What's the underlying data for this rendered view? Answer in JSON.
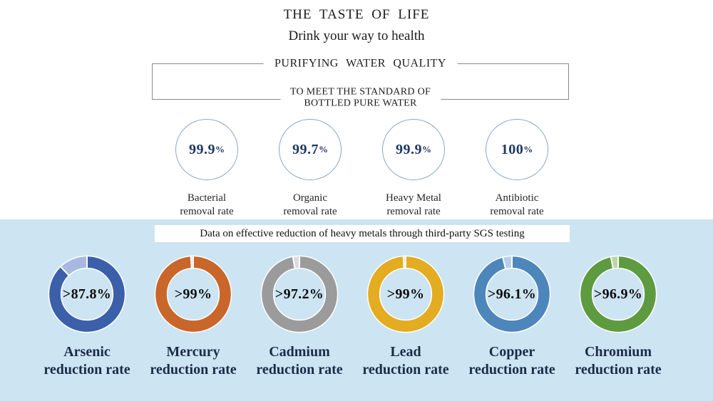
{
  "header": {
    "title": "THE TASTE OF LIFE",
    "subtitle": "Drink your way to health",
    "box_title": "PURIFYING WATER QUALITY",
    "box_subtitle_line1": "TO MEET THE STANDARD OF",
    "box_subtitle_line2": "BOTTLED PURE WATER"
  },
  "removal_rates": [
    {
      "value": "99.9",
      "unit": "%",
      "label_line1": "Bacterial",
      "label_line2": "removal rate"
    },
    {
      "value": "99.7",
      "unit": "%",
      "label_line1": "Organic",
      "label_line2": "removal rate"
    },
    {
      "value": "99.9",
      "unit": "%",
      "label_line1": "Heavy Metal",
      "label_line2": "removal rate"
    },
    {
      "value": "100",
      "unit": "%",
      "label_line1": "Antibiotic",
      "label_line2": "removal rate"
    }
  ],
  "reduction_section": {
    "banner": "Data on effective reduction of heavy metals through third-party SGS testing",
    "donuts": [
      {
        "value_label": ">87.8%",
        "percent": 87.8,
        "color": "#3b5fa9",
        "remainder_color": "#a9b8e0",
        "label_line1": "Arsenic",
        "label_line2": "reduction rate"
      },
      {
        "value_label": ">99%",
        "percent": 99.0,
        "color": "#c9662a",
        "remainder_color": "#f3ddc9",
        "label_line1": "Mercury",
        "label_line2": "reduction rate"
      },
      {
        "value_label": ">97.2%",
        "percent": 97.2,
        "color": "#9b9b9b",
        "remainder_color": "#dcdcdc",
        "label_line1": "Cadmium",
        "label_line2": "reduction rate"
      },
      {
        "value_label": ">99%",
        "percent": 99.0,
        "color": "#e3ac21",
        "remainder_color": "#f6e8c5",
        "label_line1": "Lead",
        "label_line2": "reduction rate"
      },
      {
        "value_label": ">96.1%",
        "percent": 96.1,
        "color": "#4d86bb",
        "remainder_color": "#b8cfe7",
        "label_line1": "Copper",
        "label_line2": "reduction rate"
      },
      {
        "value_label": ">96.9%",
        "percent": 96.9,
        "color": "#5e9b40",
        "remainder_color": "#b9d8a2",
        "label_line1": "Chromium",
        "label_line2": "reduction rate"
      }
    ]
  },
  "colors": {
    "section_bg": "#cde4f2",
    "navy_text": "#1f3864",
    "circle_border": "#8ca6c2",
    "box_border": "#8a8a8a"
  },
  "chart_data": [
    {
      "type": "pie",
      "subtype": "indicator-circles",
      "title": "PURIFYING WATER QUALITY TO MEET THE STANDARD OF BOTTLED PURE WATER",
      "categories": [
        "Bacterial removal rate",
        "Organic removal rate",
        "Heavy Metal removal rate",
        "Antibiotic removal rate"
      ],
      "values": [
        99.9,
        99.7,
        99.9,
        100
      ],
      "unit": "%",
      "legend_position": "none"
    },
    {
      "type": "pie",
      "subtype": "donut",
      "title": "Data on effective reduction of heavy metals through third-party SGS testing",
      "categories": [
        "Arsenic reduction rate",
        "Mercury reduction rate",
        "Cadmium reduction rate",
        "Lead reduction rate",
        "Copper reduction rate",
        "Chromium reduction rate"
      ],
      "values": [
        87.8,
        99,
        97.2,
        99,
        96.1,
        96.9
      ],
      "data_labels": [
        ">87.8%",
        ">99%",
        ">97.2%",
        ">99%",
        ">96.1%",
        ">96.9%"
      ],
      "colors": [
        "#3b5fa9",
        "#c9662a",
        "#9b9b9b",
        "#e3ac21",
        "#4d86bb",
        "#5e9b40"
      ],
      "unit": "%",
      "note": "each donut shows reduction share in solid color, remainder in lighter tint starting at 12 o'clock counterclockwise",
      "legend_position": "none"
    }
  ]
}
